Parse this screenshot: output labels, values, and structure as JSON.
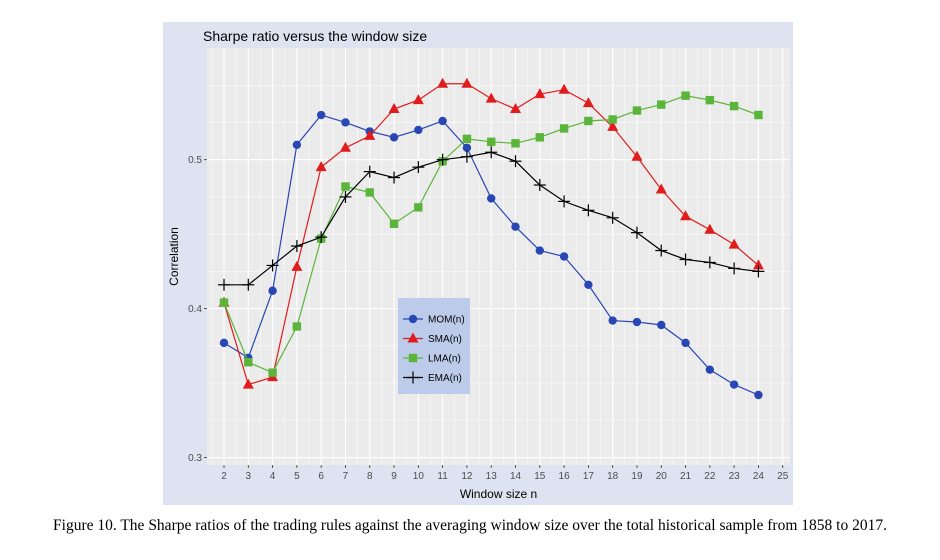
{
  "chart_data": {
    "type": "line",
    "title": "Sharpe ratio versus the window size",
    "xlabel": "Window size n",
    "ylabel": "Correlation",
    "xlim": [
      1.3,
      25.3
    ],
    "ylim": [
      0.295,
      0.575
    ],
    "x_ticks": [
      2,
      3,
      4,
      5,
      6,
      7,
      8,
      9,
      10,
      11,
      12,
      13,
      14,
      15,
      16,
      17,
      18,
      19,
      20,
      21,
      22,
      23,
      24,
      25
    ],
    "y_ticks": [
      0.3,
      0.4,
      0.5
    ],
    "y_tick_labels": [
      "0.3",
      "0.4",
      "0.5"
    ],
    "grid": true,
    "legend_position": "center",
    "x": [
      2,
      3,
      4,
      5,
      6,
      7,
      8,
      9,
      10,
      11,
      12,
      13,
      14,
      15,
      16,
      17,
      18,
      19,
      20,
      21,
      22,
      23,
      24
    ],
    "series": [
      {
        "name": "MOM(n)",
        "color": "#2846b4",
        "marker": "circle",
        "values": [
          0.377,
          0.367,
          0.412,
          0.51,
          0.53,
          0.525,
          0.519,
          0.515,
          0.52,
          0.526,
          0.508,
          0.474,
          0.455,
          0.439,
          0.435,
          0.416,
          0.392,
          0.391,
          0.389,
          0.377,
          0.359,
          0.349,
          0.342
        ]
      },
      {
        "name": "SMA(n)",
        "color": "#e01c1c",
        "marker": "triangle",
        "values": [
          0.404,
          0.349,
          0.354,
          0.428,
          0.495,
          0.508,
          0.516,
          0.534,
          0.54,
          0.551,
          0.551,
          0.541,
          0.534,
          0.544,
          0.547,
          0.538,
          0.522,
          0.502,
          0.48,
          0.462,
          0.453,
          0.443,
          0.429
        ]
      },
      {
        "name": "LMA(n)",
        "color": "#5ab53a",
        "marker": "square",
        "values": [
          0.404,
          0.364,
          0.357,
          0.388,
          0.447,
          0.482,
          0.478,
          0.457,
          0.468,
          0.499,
          0.514,
          0.512,
          0.511,
          0.515,
          0.521,
          0.526,
          0.527,
          0.533,
          0.537,
          0.543,
          0.54,
          0.536,
          0.53
        ]
      },
      {
        "name": "EMA(n)",
        "color": "#000000",
        "marker": "plus",
        "values": [
          0.416,
          0.416,
          0.429,
          0.442,
          0.448,
          0.475,
          0.492,
          0.488,
          0.495,
          0.5,
          0.502,
          0.505,
          0.499,
          0.483,
          0.472,
          0.466,
          0.461,
          0.451,
          0.439,
          0.433,
          0.431,
          0.427,
          0.425
        ]
      }
    ]
  },
  "colors": {
    "outer_background": "#dde3f0",
    "panel_background": "#ebebeb",
    "grid": "#ffffff",
    "legend_background": "#bccbea"
  },
  "caption": "Figure 10.  The Sharpe ratios of the trading rules against the averaging window size over the total historical sample from 1858 to 2017."
}
